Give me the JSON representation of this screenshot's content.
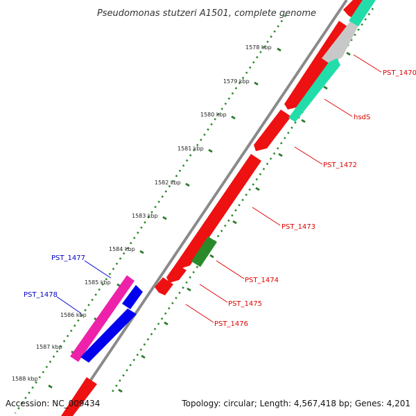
{
  "title": "Pseudomonas stutzeri A1501, complete genome",
  "footer": {
    "accession": "Accession: NC_009434",
    "summary": "Topology: circular; Length: 4,567,418 bp; Genes: 4,201"
  },
  "colors": {
    "backbone": "#8a8a8a",
    "tick_dots": "#2a8a2a",
    "tick_dash": "#2f7a2f",
    "label_red": "#dd0000",
    "label_blue": "#0000cc",
    "gene_red": "#ee1111",
    "gene_teal": "#22ddaa",
    "gene_grey": "#c8c8c8",
    "gene_green": "#2a8a2a",
    "gene_magenta": "#ee22aa",
    "gene_blue": "#0000ee"
  },
  "scale": {
    "unit": "kbp",
    "ticks": [
      {
        "kbp": 1578,
        "label": "1578 kbp"
      },
      {
        "kbp": 1579,
        "label": "1579 kbp"
      },
      {
        "kbp": 1580,
        "label": "1580 kbp"
      },
      {
        "kbp": 1581,
        "label": "1581 kbp"
      },
      {
        "kbp": 1582,
        "label": "1582 kbp"
      },
      {
        "kbp": 1583,
        "label": "1583 kbp"
      },
      {
        "kbp": 1584,
        "label": "1584 kbp"
      },
      {
        "kbp": 1585,
        "label": "1585 kbp"
      },
      {
        "kbp": 1586,
        "label": "1586 kbp"
      },
      {
        "kbp": 1587,
        "label": "1587 kbp"
      },
      {
        "kbp": 1588,
        "label": "1588 kbp"
      }
    ]
  },
  "genes": [
    {
      "id": "PST_1470",
      "label": "PST_1470",
      "color": "grey",
      "strand": "reverse"
    },
    {
      "id": "hsdS",
      "label": "hsdS",
      "color": "teal",
      "strand": "reverse"
    },
    {
      "id": "PST_1472",
      "label": "PST_1472",
      "color": "red",
      "strand": "forward"
    },
    {
      "id": "PST_1473",
      "label": "PST_1473",
      "color": "red",
      "strand": "forward"
    },
    {
      "id": "PST_1474",
      "label": "PST_1474",
      "color": "green",
      "strand": "reverse"
    },
    {
      "id": "PST_1475",
      "label": "PST_1475",
      "color": "red",
      "strand": "forward"
    },
    {
      "id": "PST_1476",
      "label": "PST_1476",
      "color": "red",
      "strand": "forward"
    },
    {
      "id": "PST_1477",
      "label": "PST_1477",
      "color": "magenta",
      "strand": "reverse"
    },
    {
      "id": "PST_1478",
      "label": "PST_1478",
      "color": "blue",
      "strand": "reverse"
    }
  ]
}
